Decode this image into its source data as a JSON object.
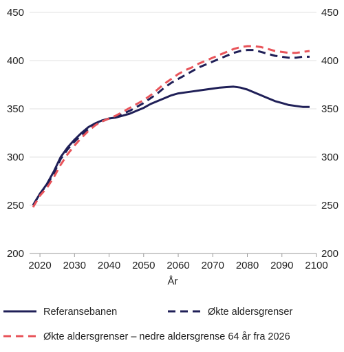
{
  "chart_data": {
    "type": "line",
    "title": "",
    "xlabel": "År",
    "ylabel": "",
    "xlim": [
      2017,
      2100
    ],
    "ylim": [
      200,
      450
    ],
    "x_ticks": [
      2020,
      2030,
      2040,
      2050,
      2060,
      2070,
      2080,
      2090,
      2100
    ],
    "y_ticks": [
      200,
      250,
      300,
      350,
      400,
      450
    ],
    "grid": "horizontal",
    "legend_placement": "bottom",
    "series": [
      {
        "name": "Referansebanen",
        "color": "#1f1f57",
        "dash": "solid",
        "x": [
          2018,
          2020,
          2022,
          2024,
          2026,
          2028,
          2030,
          2032,
          2034,
          2036,
          2038,
          2040,
          2042,
          2044,
          2046,
          2048,
          2050,
          2052,
          2054,
          2056,
          2058,
          2060,
          2062,
          2064,
          2066,
          2068,
          2070,
          2072,
          2074,
          2076,
          2078,
          2080,
          2082,
          2084,
          2086,
          2088,
          2090,
          2092,
          2094,
          2096,
          2098
        ],
        "y": [
          250,
          262,
          272,
          285,
          300,
          310,
          318,
          325,
          331,
          335,
          338,
          340,
          341,
          343,
          345,
          348,
          351,
          355,
          358,
          361,
          364,
          366,
          367,
          368,
          369,
          370,
          371,
          372,
          372.5,
          373,
          372,
          370,
          367,
          364,
          361,
          358,
          356,
          354,
          353,
          352,
          352
        ]
      },
      {
        "name": "Økte aldersgrenser",
        "color": "#1f1f57",
        "dash": "dashed",
        "x": [
          2018,
          2020,
          2022,
          2024,
          2026,
          2028,
          2030,
          2032,
          2034,
          2036,
          2038,
          2040,
          2042,
          2044,
          2046,
          2048,
          2050,
          2052,
          2054,
          2056,
          2058,
          2060,
          2062,
          2064,
          2066,
          2068,
          2070,
          2072,
          2074,
          2076,
          2078,
          2080,
          2082,
          2084,
          2086,
          2088,
          2090,
          2092,
          2094,
          2096,
          2098
        ],
        "y": [
          250,
          262,
          271,
          283,
          298,
          308,
          316,
          323,
          329,
          334,
          337,
          340,
          342,
          345,
          348,
          352,
          356,
          361,
          366,
          372,
          377,
          381,
          385,
          389,
          393,
          396,
          399,
          402,
          405,
          408,
          410,
          411,
          411,
          409,
          407,
          405,
          404,
          403,
          403,
          404,
          404
        ]
      },
      {
        "name": "Økte aldersgrenser – nedre aldersgrense 64 år fra 2026",
        "color": "#e8545a",
        "dash": "dashed",
        "x": [
          2018,
          2020,
          2022,
          2024,
          2026,
          2028,
          2030,
          2032,
          2034,
          2036,
          2038,
          2040,
          2042,
          2044,
          2046,
          2048,
          2050,
          2052,
          2054,
          2056,
          2058,
          2060,
          2062,
          2064,
          2066,
          2068,
          2070,
          2072,
          2074,
          2076,
          2078,
          2080,
          2082,
          2084,
          2086,
          2088,
          2090,
          2092,
          2094,
          2096,
          2098
        ],
        "y": [
          248,
          260,
          268,
          279,
          292,
          303,
          312,
          320,
          327,
          333,
          337,
          340,
          343,
          347,
          351,
          355,
          359,
          364,
          370,
          376,
          381,
          386,
          390,
          393,
          397,
          400,
          403,
          406,
          409,
          412,
          414,
          415,
          415,
          414,
          412,
          410,
          409,
          408,
          408,
          409,
          410
        ]
      }
    ]
  }
}
